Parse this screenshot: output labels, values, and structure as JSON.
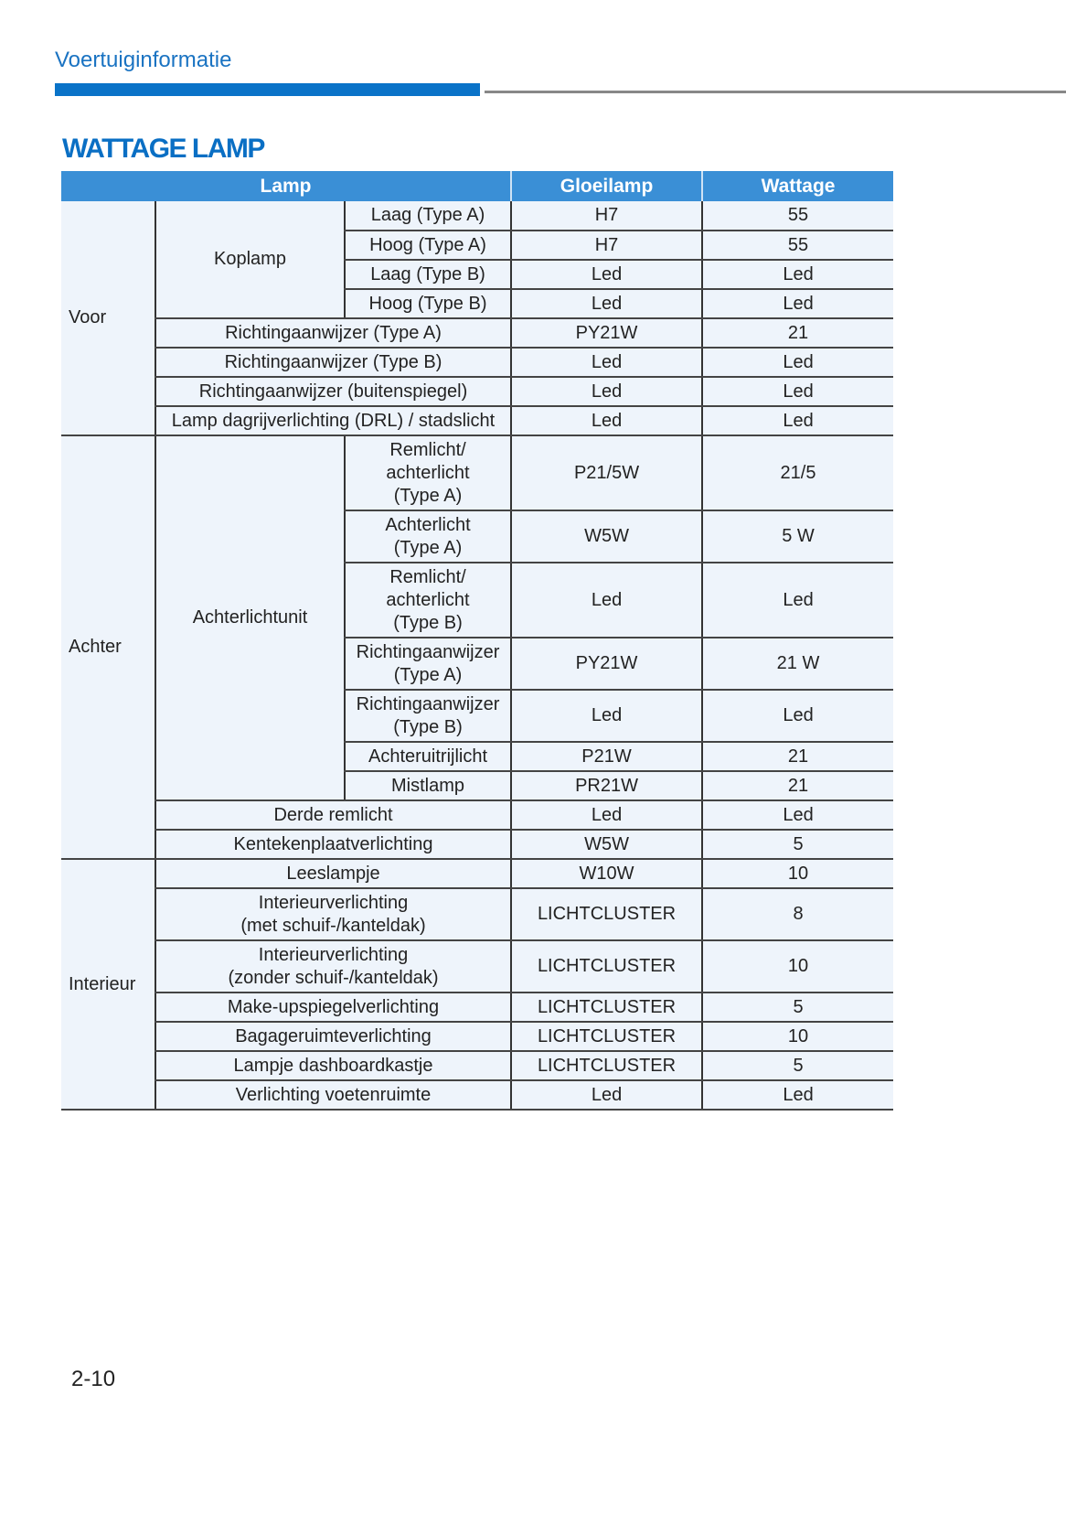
{
  "header": {
    "section": "Voertuiginformatie"
  },
  "title": "WATTAGE LAMP",
  "colors": {
    "accent": "#0a73c8",
    "table_header": "#3a8fd6",
    "row_bg": "#eef4fb"
  },
  "table": {
    "headers": [
      "Lamp",
      "Gloeilamp",
      "Wattage"
    ],
    "groups": [
      {
        "label": "Voor",
        "items": [
          {
            "label": "Koplamp",
            "sub": [
              {
                "label": "Laag (Type A)",
                "bulb": "H7",
                "watt": "55"
              },
              {
                "label": "Hoog (Type A)",
                "bulb": "H7",
                "watt": "55"
              },
              {
                "label": "Laag (Type B)",
                "bulb": "Led",
                "watt": "Led"
              },
              {
                "label": "Hoog (Type B)",
                "bulb": "Led",
                "watt": "Led"
              }
            ]
          },
          {
            "label": "Richtingaanwijzer (Type A)",
            "bulb": "PY21W",
            "watt": "21"
          },
          {
            "label": "Richtingaanwijzer (Type B)",
            "bulb": "Led",
            "watt": "Led"
          },
          {
            "label": "Richtingaanwijzer (buitenspiegel)",
            "bulb": "Led",
            "watt": "Led"
          },
          {
            "label": "Lamp dagrijverlichting (DRL) / stadslicht",
            "bulb": "Led",
            "watt": "Led"
          }
        ]
      },
      {
        "label": "Achter",
        "items": [
          {
            "label": "Achterlichtunit",
            "sub": [
              {
                "label": "Remlicht/\nachterlicht\n(Type A)",
                "bulb": "P21/5W",
                "watt": "21/5"
              },
              {
                "label": "Achterlicht\n(Type A)",
                "bulb": "W5W",
                "watt": "5 W"
              },
              {
                "label": "Remlicht/\nachterlicht\n(Type B)",
                "bulb": "Led",
                "watt": "Led"
              },
              {
                "label": "Richtingaanwijzer\n(Type A)",
                "bulb": "PY21W",
                "watt": "21 W"
              },
              {
                "label": "Richtingaanwijzer\n(Type B)",
                "bulb": "Led",
                "watt": "Led"
              },
              {
                "label": "Achteruitrijlicht",
                "bulb": "P21W",
                "watt": "21"
              },
              {
                "label": "Mistlamp",
                "bulb": "PR21W",
                "watt": "21"
              }
            ]
          },
          {
            "label": "Derde remlicht",
            "bulb": "Led",
            "watt": "Led"
          },
          {
            "label": "Kentekenplaatverlichting",
            "bulb": "W5W",
            "watt": "5"
          }
        ]
      },
      {
        "label": "Interieur",
        "items": [
          {
            "label": "Leeslampje",
            "bulb": "W10W",
            "watt": "10"
          },
          {
            "label": "Interieurverlichting\n(met schuif-/kanteldak)",
            "bulb": "LICHTCLUSTER",
            "watt": "8"
          },
          {
            "label": "Interieurverlichting\n(zonder schuif-/kanteldak)",
            "bulb": "LICHTCLUSTER",
            "watt": "10"
          },
          {
            "label": "Make-upspiegelverlichting",
            "bulb": "LICHTCLUSTER",
            "watt": "5"
          },
          {
            "label": "Bagageruimteverlichting",
            "bulb": "LICHTCLUSTER",
            "watt": "10"
          },
          {
            "label": "Lampje dashboardkastje",
            "bulb": "LICHTCLUSTER",
            "watt": "5"
          },
          {
            "label": "Verlichting voetenruimte",
            "bulb": "Led",
            "watt": "Led"
          }
        ]
      }
    ]
  },
  "footer": {
    "page_number": "2-10"
  }
}
